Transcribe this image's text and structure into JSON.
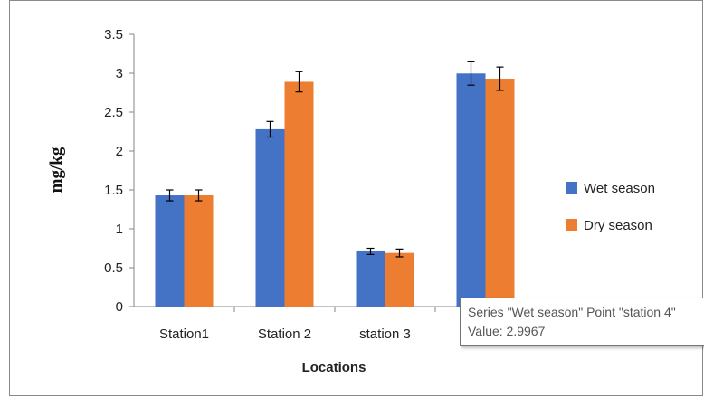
{
  "chart_data": {
    "type": "bar",
    "title": "",
    "xlabel": "Locations",
    "ylabel": "mg/kg",
    "ylim": [
      0,
      3.5
    ],
    "yticks": [
      "0",
      "0.5",
      "1",
      "1.5",
      "2",
      "2.5",
      "3",
      "3.5"
    ],
    "categories": [
      "Station1",
      "Station 2",
      "station 3",
      "station 4"
    ],
    "series": [
      {
        "name": "Wet season",
        "color": "#4472C4",
        "values": [
          1.43,
          2.28,
          0.71,
          2.9967
        ],
        "errors": [
          0.07,
          0.1,
          0.04,
          0.15
        ]
      },
      {
        "name": "Dry season",
        "color": "#ED7D31",
        "values": [
          1.43,
          2.89,
          0.69,
          2.93
        ],
        "errors": [
          0.07,
          0.13,
          0.05,
          0.15
        ]
      }
    ],
    "legend_position": "right",
    "grid": false
  },
  "tooltip": {
    "line1": "Series \"Wet season\" Point \"station 4\"",
    "line2": "Value: 2.9967"
  }
}
